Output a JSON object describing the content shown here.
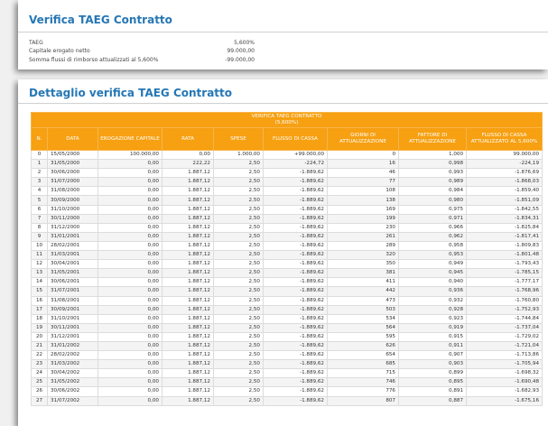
{
  "verifica": {
    "title": "Verifica TAEG Contratto",
    "rows": [
      {
        "label": "TAEG",
        "value": "5,600%"
      },
      {
        "label": "Capitale erogato netto",
        "value": "99.000,00"
      },
      {
        "label": "Somma flussi di rimborso attualizzati al 5,600%",
        "value": "-99.000,00"
      }
    ]
  },
  "dettaglio": {
    "title": "Dettaglio verifica TAEG Contratto",
    "table_title": "VERIFICA TAEG CONTRATTO",
    "table_subtitle": "(5,600%)",
    "columns": [
      "N.",
      "DATA",
      "EROGAZIONE CAPITALE",
      "RATA",
      "SPESE",
      "FLUSSO DI CASSA",
      "GIORNI DI ATTUALIZZAZIONE",
      "FATTORE DI ATTUALIZZAZIONE",
      "FLUSSO DI CASSA ATTUALIZZATO AL 5,600%"
    ],
    "rows": [
      [
        "0",
        "15/05/2000",
        "100.000,00",
        "0,00",
        "1.000,00",
        "+99.000,00",
        "0",
        "1,000",
        "99.000,00"
      ],
      [
        "1",
        "31/05/2000",
        "0,00",
        "222,22",
        "2,50",
        "-224,72",
        "16",
        "0,998",
        "-224,19"
      ],
      [
        "2",
        "30/06/2000",
        "0,00",
        "1.887,12",
        "2,50",
        "-1.889,62",
        "46",
        "0,993",
        "-1.876,69"
      ],
      [
        "3",
        "31/07/2000",
        "0,00",
        "1.887,12",
        "2,50",
        "-1.889,62",
        "77",
        "0,989",
        "-1.868,03"
      ],
      [
        "4",
        "31/08/2000",
        "0,00",
        "1.887,12",
        "2,50",
        "-1.889,62",
        "108",
        "0,984",
        "-1.859,40"
      ],
      [
        "5",
        "30/09/2000",
        "0,00",
        "1.887,12",
        "2,50",
        "-1.889,62",
        "138",
        "0,980",
        "-1.851,09"
      ],
      [
        "6",
        "31/10/2000",
        "0,00",
        "1.887,12",
        "2,50",
        "-1.889,62",
        "169",
        "0,975",
        "-1.842,55"
      ],
      [
        "7",
        "30/11/2000",
        "0,00",
        "1.887,12",
        "2,50",
        "-1.889,62",
        "199",
        "0,971",
        "-1.834,31"
      ],
      [
        "8",
        "31/12/2000",
        "0,00",
        "1.887,12",
        "2,50",
        "-1.889,62",
        "230",
        "0,966",
        "-1.825,84"
      ],
      [
        "9",
        "31/01/2001",
        "0,00",
        "1.887,12",
        "2,50",
        "-1.889,62",
        "261",
        "0,962",
        "-1.817,41"
      ],
      [
        "10",
        "28/02/2001",
        "0,00",
        "1.887,12",
        "2,50",
        "-1.889,62",
        "289",
        "0,958",
        "-1.809,83"
      ],
      [
        "11",
        "31/03/2001",
        "0,00",
        "1.887,12",
        "2,50",
        "-1.889,62",
        "320",
        "0,953",
        "-1.801,48"
      ],
      [
        "12",
        "30/04/2001",
        "0,00",
        "1.887,12",
        "2,50",
        "-1.889,62",
        "350",
        "0,949",
        "-1.793,43"
      ],
      [
        "13",
        "31/05/2001",
        "0,00",
        "1.887,12",
        "2,50",
        "-1.889,62",
        "381",
        "0,945",
        "-1.785,15"
      ],
      [
        "14",
        "30/06/2001",
        "0,00",
        "1.887,12",
        "2,50",
        "-1.889,62",
        "411",
        "0,940",
        "-1.777,17"
      ],
      [
        "15",
        "31/07/2001",
        "0,00",
        "1.887,12",
        "2,50",
        "-1.889,62",
        "442",
        "0,936",
        "-1.768,96"
      ],
      [
        "16",
        "31/08/2001",
        "0,00",
        "1.887,12",
        "2,50",
        "-1.889,62",
        "473",
        "0,932",
        "-1.760,80"
      ],
      [
        "17",
        "30/09/2001",
        "0,00",
        "1.887,12",
        "2,50",
        "-1.889,62",
        "503",
        "0,928",
        "-1.752,93"
      ],
      [
        "18",
        "31/10/2001",
        "0,00",
        "1.887,12",
        "2,50",
        "-1.889,62",
        "534",
        "0,923",
        "-1.744,84"
      ],
      [
        "19",
        "30/11/2001",
        "0,00",
        "1.887,12",
        "2,50",
        "-1.889,62",
        "564",
        "0,919",
        "-1.737,04"
      ],
      [
        "20",
        "31/12/2001",
        "0,00",
        "1.887,12",
        "2,50",
        "-1.889,62",
        "595",
        "0,915",
        "-1.729,02"
      ],
      [
        "21",
        "31/01/2002",
        "0,00",
        "1.887,12",
        "2,50",
        "-1.889,62",
        "626",
        "0,911",
        "-1.721,04"
      ],
      [
        "22",
        "28/02/2002",
        "0,00",
        "1.887,12",
        "2,50",
        "-1.889,62",
        "654",
        "0,907",
        "-1.713,86"
      ],
      [
        "23",
        "31/03/2002",
        "0,00",
        "1.887,12",
        "2,50",
        "-1.889,62",
        "685",
        "0,903",
        "-1.705,94"
      ],
      [
        "24",
        "30/04/2002",
        "0,00",
        "1.887,12",
        "2,50",
        "-1.889,62",
        "715",
        "0,899",
        "-1.698,32"
      ],
      [
        "25",
        "31/05/2002",
        "0,00",
        "1.887,12",
        "2,50",
        "-1.889,62",
        "746",
        "0,895",
        "-1.690,48"
      ],
      [
        "26",
        "30/06/2002",
        "0,00",
        "1.887,12",
        "2,50",
        "-1.889,62",
        "776",
        "0,891",
        "-1.682,93"
      ],
      [
        "27",
        "31/07/2002",
        "0,00",
        "1.887,12",
        "2,50",
        "-1.889,62",
        "807",
        "0,887",
        "-1.675,16"
      ]
    ]
  }
}
